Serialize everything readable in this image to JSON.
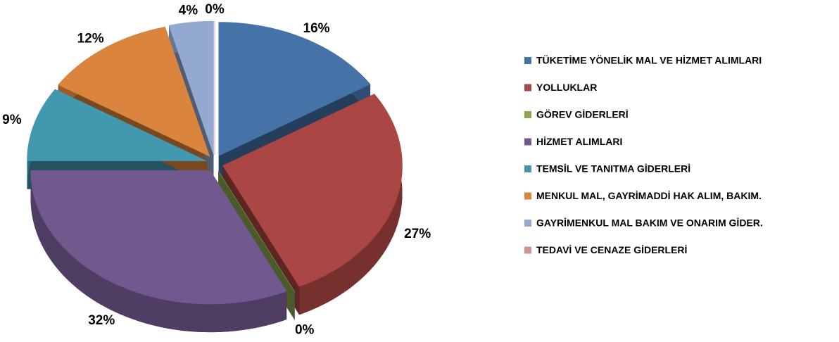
{
  "chart_data": {
    "type": "pie",
    "categories": [
      "TÜKETİME YÖNELİK MAL VE HİZMET ALIMLARI",
      "YOLLUKLAR",
      "GÖREV GİDERLERİ",
      "HİZMET ALIMLARI",
      "TEMSİL VE TANITMA GİDERLERİ",
      "MENKUL MAL, GAYRİMADDİ HAK ALIM, BAKIM.",
      "GAYRİMENKUL MAL BAKIM VE ONARIM GİDER.",
      "TEDAVİ VE CENAZE GİDERLERİ"
    ],
    "values": [
      16,
      27,
      0,
      32,
      9,
      12,
      4,
      0
    ],
    "value_labels": [
      "16%",
      "27%",
      "0%",
      "32%",
      "9%",
      "12%",
      "4%",
      "0%"
    ],
    "colors": [
      "#4572a7",
      "#aa4643",
      "#89a54e",
      "#71588f",
      "#4198af",
      "#db843d",
      "#93a9cf",
      "#d19392"
    ],
    "legend": "right"
  }
}
